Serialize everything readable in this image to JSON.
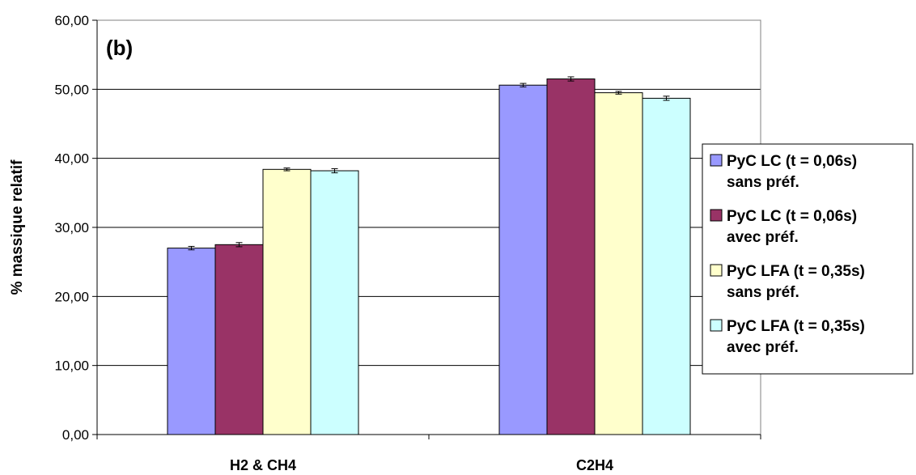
{
  "chart_data": {
    "type": "bar",
    "annotation": "(b)",
    "ylabel": "% massique relatif",
    "ylim": [
      0,
      60
    ],
    "yticks": [
      "0,00",
      "10,00",
      "20,00",
      "30,00",
      "40,00",
      "50,00",
      "60,00"
    ],
    "categories": [
      "H2 & CH4",
      "C2H4"
    ],
    "series": [
      {
        "name": [
          "PyC LC (t = 0,06s)",
          "sans préf."
        ],
        "color": "#9999ff",
        "values": [
          27.0,
          50.6
        ],
        "errors": [
          0.25,
          0.25
        ]
      },
      {
        "name": [
          "PyC LC (t = 0,06s)",
          "avec préf."
        ],
        "color": "#993366",
        "values": [
          27.5,
          51.5
        ],
        "errors": [
          0.3,
          0.3
        ]
      },
      {
        "name": [
          "PyC LFA (t = 0,35s)",
          "sans préf."
        ],
        "color": "#ffffcc",
        "values": [
          38.4,
          49.5
        ],
        "errors": [
          0.2,
          0.2
        ]
      },
      {
        "name": [
          "PyC LFA (t = 0,35s)",
          "avec préf."
        ],
        "color": "#ccffff",
        "values": [
          38.2,
          48.7
        ],
        "errors": [
          0.3,
          0.3
        ]
      }
    ],
    "grid": true,
    "legend_position": "right"
  }
}
